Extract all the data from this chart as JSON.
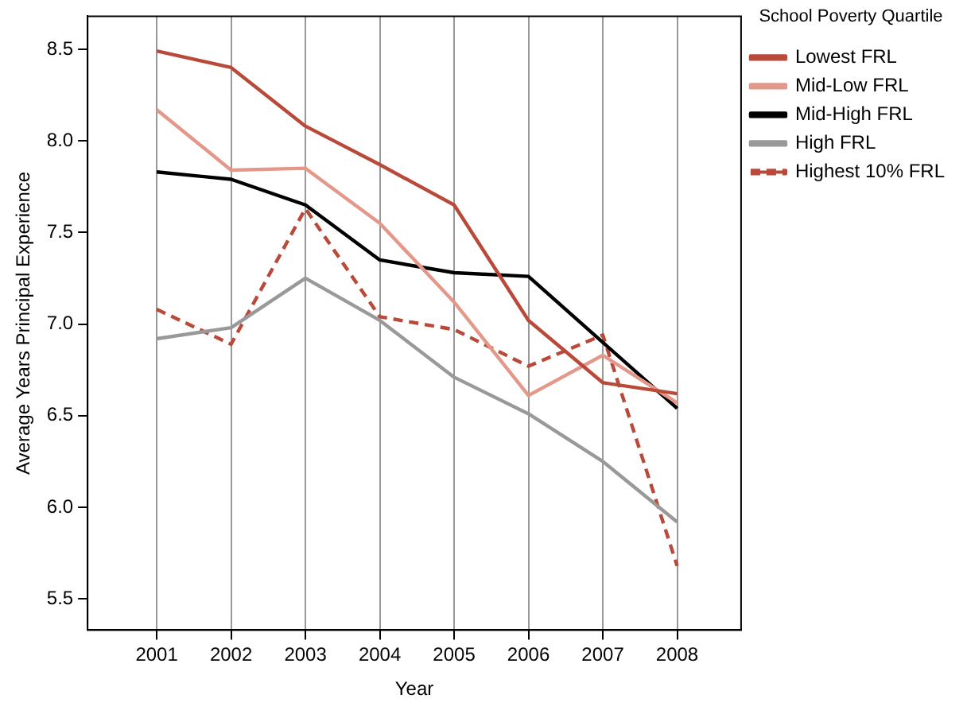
{
  "chart_data": {
    "type": "line",
    "xlabel": "Year",
    "ylabel": "Average Years Principal Experience",
    "legend_title": "School Poverty Quartile",
    "legend": "right",
    "grid": "x",
    "marker": "none",
    "x": [
      2001,
      2002,
      2003,
      2004,
      2005,
      2006,
      2007,
      2008
    ],
    "xlim": [
      2000.07,
      2008.86
    ],
    "xticks": [
      2001,
      2002,
      2003,
      2004,
      2005,
      2006,
      2007,
      2008
    ],
    "ylim": [
      5.33,
      8.68
    ],
    "yticks": [
      5.5,
      {
        "value": 6,
        "label": "6.0"
      },
      6.5,
      {
        "value": 7,
        "label": "7.0"
      },
      7.5,
      {
        "value": 8,
        "label": "8.0"
      },
      8.5
    ],
    "series": [
      {
        "name": "Lowest FRL",
        "color": "#b94a3a",
        "line_style": "solid",
        "values": [
          8.49,
          8.4,
          8.08,
          7.87,
          7.65,
          7.02,
          6.68,
          6.62
        ]
      },
      {
        "name": "Mid-Low FRL",
        "color": "#e3988a",
        "line_style": "solid",
        "values": [
          8.17,
          7.84,
          7.85,
          7.55,
          7.12,
          6.61,
          6.83,
          6.57
        ]
      },
      {
        "name": "Mid-High FRL",
        "color": "#000000",
        "line_style": "solid",
        "values": [
          7.83,
          7.79,
          7.65,
          7.35,
          7.28,
          7.26,
          6.9,
          6.54
        ]
      },
      {
        "name": "High FRL",
        "color": "#999999",
        "line_style": "solid",
        "values": [
          6.92,
          6.98,
          7.25,
          7.02,
          6.71,
          6.51,
          6.25,
          5.92
        ]
      },
      {
        "name": "Highest 10% FRL",
        "color": "#b94a3a",
        "line_style": "dashed",
        "values": [
          7.08,
          6.89,
          7.63,
          7.04,
          6.97,
          6.77,
          6.94,
          5.68
        ]
      }
    ]
  }
}
